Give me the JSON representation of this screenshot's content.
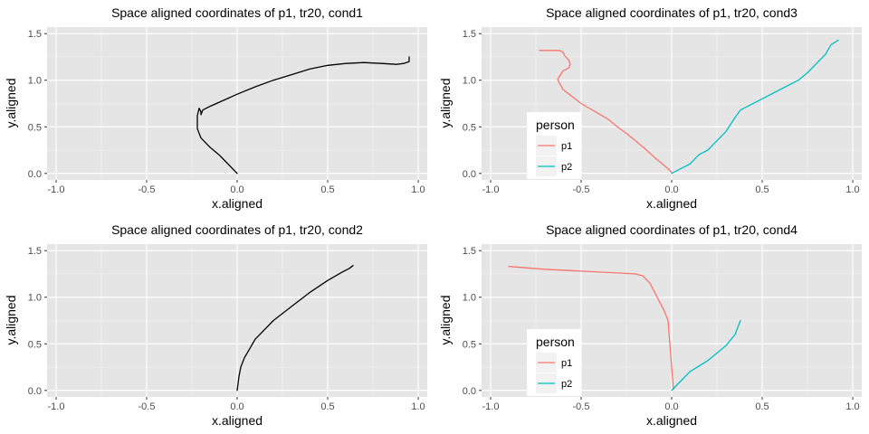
{
  "theme": {
    "panel_bg": "#e5e5e5",
    "grid_major": "#ffffff",
    "grid_minor": "#f2f2f2",
    "tick_text": "#4d4d4d",
    "legend_key_bg": "#f2f2f2"
  },
  "chart_data": [
    {
      "type": "line",
      "title": "Space aligned coordinates of p1, tr20, cond1",
      "xlabel": "x.aligned",
      "ylabel": "y.aligned",
      "xlim": [
        -1.05,
        1.05
      ],
      "ylim": [
        -0.07,
        1.57
      ],
      "xticks": [
        "-1.0",
        "-0.5",
        "0.0",
        "0.5",
        "1.0"
      ],
      "yticks": [
        "0.0",
        "0.5",
        "1.0",
        "1.5"
      ],
      "grid": true,
      "legend": null,
      "series": [
        {
          "color": "#000000",
          "points": [
            [
              0.0,
              0.0
            ],
            [
              -0.05,
              0.1
            ],
            [
              -0.1,
              0.2
            ],
            [
              -0.15,
              0.28
            ],
            [
              -0.2,
              0.38
            ],
            [
              -0.22,
              0.48
            ],
            [
              -0.22,
              0.55
            ],
            [
              -0.22,
              0.62
            ],
            [
              -0.21,
              0.7
            ],
            [
              -0.2,
              0.66
            ],
            [
              -0.2,
              0.63
            ],
            [
              -0.19,
              0.68
            ],
            [
              -0.15,
              0.72
            ],
            [
              -0.08,
              0.78
            ],
            [
              0.0,
              0.85
            ],
            [
              0.1,
              0.93
            ],
            [
              0.2,
              1.0
            ],
            [
              0.3,
              1.06
            ],
            [
              0.4,
              1.12
            ],
            [
              0.5,
              1.16
            ],
            [
              0.6,
              1.18
            ],
            [
              0.7,
              1.19
            ],
            [
              0.8,
              1.18
            ],
            [
              0.88,
              1.17
            ],
            [
              0.92,
              1.18
            ],
            [
              0.95,
              1.2
            ],
            [
              0.95,
              1.25
            ]
          ]
        }
      ]
    },
    {
      "type": "line",
      "title": "Space aligned coordinates of p1, tr20, cond3",
      "xlabel": "x.aligned",
      "ylabel": "y.aligned",
      "xlim": [
        -1.05,
        1.05
      ],
      "ylim": [
        -0.07,
        1.57
      ],
      "xticks": [
        "-1.0",
        "-0.5",
        "0.0",
        "0.5",
        "1.0"
      ],
      "yticks": [
        "0.0",
        "0.5",
        "1.0",
        "1.5"
      ],
      "grid": true,
      "legend": {
        "title": "person",
        "position": "bottom-left",
        "entries": [
          "p1",
          "p2"
        ]
      },
      "series": [
        {
          "name": "p1",
          "color": "#f8766d",
          "points": [
            [
              -0.73,
              1.32
            ],
            [
              -0.62,
              1.32
            ],
            [
              -0.6,
              1.3
            ],
            [
              -0.59,
              1.26
            ],
            [
              -0.57,
              1.22
            ],
            [
              -0.56,
              1.17
            ],
            [
              -0.57,
              1.13
            ],
            [
              -0.6,
              1.1
            ],
            [
              -0.62,
              1.04
            ],
            [
              -0.63,
              1.01
            ],
            [
              -0.62,
              0.97
            ],
            [
              -0.6,
              0.9
            ],
            [
              -0.56,
              0.84
            ],
            [
              -0.5,
              0.75
            ],
            [
              -0.42,
              0.66
            ],
            [
              -0.35,
              0.58
            ],
            [
              -0.3,
              0.5
            ],
            [
              -0.25,
              0.43
            ],
            [
              -0.2,
              0.35
            ],
            [
              -0.15,
              0.27
            ],
            [
              -0.1,
              0.18
            ],
            [
              -0.05,
              0.1
            ],
            [
              -0.02,
              0.05
            ],
            [
              0.0,
              0.01
            ]
          ]
        },
        {
          "name": "p2",
          "color": "#00bfc4",
          "points": [
            [
              0.0,
              0.0
            ],
            [
              0.05,
              0.05
            ],
            [
              0.1,
              0.1
            ],
            [
              0.15,
              0.2
            ],
            [
              0.2,
              0.25
            ],
            [
              0.25,
              0.35
            ],
            [
              0.3,
              0.45
            ],
            [
              0.35,
              0.6
            ],
            [
              0.38,
              0.68
            ],
            [
              0.42,
              0.72
            ],
            [
              0.5,
              0.8
            ],
            [
              0.6,
              0.9
            ],
            [
              0.7,
              1.0
            ],
            [
              0.75,
              1.08
            ],
            [
              0.8,
              1.18
            ],
            [
              0.85,
              1.28
            ],
            [
              0.88,
              1.38
            ],
            [
              0.92,
              1.43
            ]
          ]
        }
      ]
    },
    {
      "type": "line",
      "title": "Space aligned coordinates of p1, tr20, cond2",
      "xlabel": "x.aligned",
      "ylabel": "y.aligned",
      "xlim": [
        -1.05,
        1.05
      ],
      "ylim": [
        -0.07,
        1.57
      ],
      "xticks": [
        "-1.0",
        "-0.5",
        "0.0",
        "0.5",
        "1.0"
      ],
      "yticks": [
        "0.0",
        "0.5",
        "1.0",
        "1.5"
      ],
      "grid": true,
      "legend": null,
      "series": [
        {
          "color": "#000000",
          "points": [
            [
              0.0,
              0.0
            ],
            [
              0.01,
              0.15
            ],
            [
              0.02,
              0.25
            ],
            [
              0.04,
              0.35
            ],
            [
              0.07,
              0.45
            ],
            [
              0.1,
              0.55
            ],
            [
              0.15,
              0.65
            ],
            [
              0.2,
              0.75
            ],
            [
              0.3,
              0.9
            ],
            [
              0.4,
              1.05
            ],
            [
              0.5,
              1.18
            ],
            [
              0.58,
              1.27
            ],
            [
              0.62,
              1.31
            ],
            [
              0.64,
              1.34
            ]
          ]
        }
      ]
    },
    {
      "type": "line",
      "title": "Space aligned coordinates of p1, tr20, cond4",
      "xlabel": "x.aligned",
      "ylabel": "y.aligned",
      "xlim": [
        -1.05,
        1.05
      ],
      "ylim": [
        -0.07,
        1.57
      ],
      "xticks": [
        "-1.0",
        "-0.5",
        "0.0",
        "0.5",
        "1.0"
      ],
      "yticks": [
        "0.0",
        "0.5",
        "1.0",
        "1.5"
      ],
      "grid": true,
      "legend": {
        "title": "person",
        "position": "bottom-left",
        "entries": [
          "p1",
          "p2"
        ]
      },
      "series": [
        {
          "name": "p1",
          "color": "#f8766d",
          "points": [
            [
              -0.9,
              1.33
            ],
            [
              -0.7,
              1.3
            ],
            [
              -0.5,
              1.28
            ],
            [
              -0.3,
              1.26
            ],
            [
              -0.2,
              1.25
            ],
            [
              -0.16,
              1.23
            ],
            [
              -0.12,
              1.15
            ],
            [
              -0.08,
              1.0
            ],
            [
              -0.04,
              0.85
            ],
            [
              -0.02,
              0.75
            ],
            [
              -0.01,
              0.5
            ],
            [
              0.0,
              0.25
            ],
            [
              0.01,
              0.01
            ]
          ]
        },
        {
          "name": "p2",
          "color": "#00bfc4",
          "points": [
            [
              0.0,
              0.0
            ],
            [
              0.05,
              0.1
            ],
            [
              0.1,
              0.2
            ],
            [
              0.2,
              0.32
            ],
            [
              0.3,
              0.48
            ],
            [
              0.35,
              0.6
            ],
            [
              0.38,
              0.75
            ]
          ]
        }
      ]
    }
  ]
}
